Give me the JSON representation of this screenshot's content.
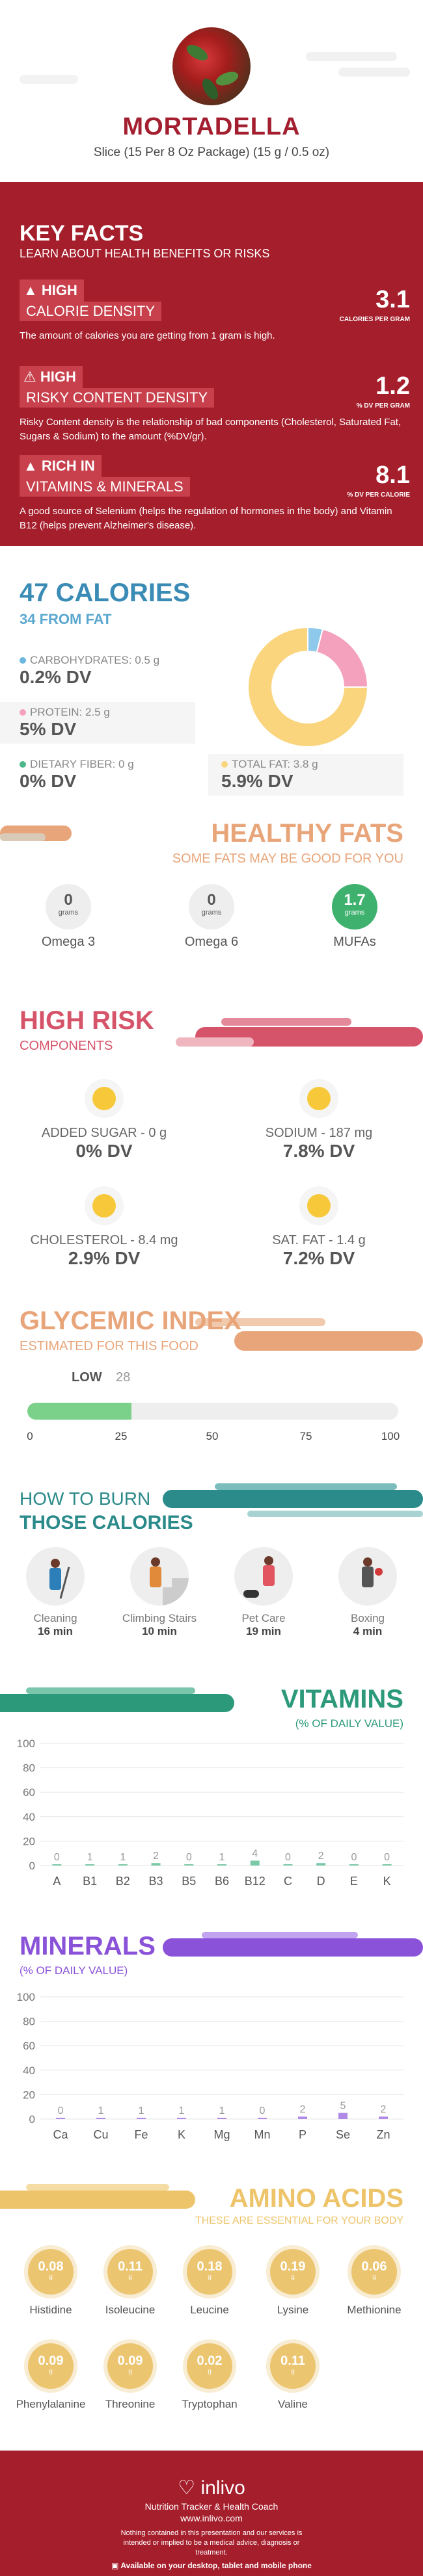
{
  "header": {
    "title": "MORTADELLA",
    "subtitle": "Slice (15 Per 8 Oz Package) (15 g / 0.5 oz)"
  },
  "key_facts": {
    "title": "KEY FACTS",
    "subtitle": "LEARN ABOUT HEALTH BENEFITS OR RISKS",
    "items": [
      {
        "icon": "fire-icon",
        "level": "HIGH",
        "name": "CALORIE DENSITY",
        "value": "3.1",
        "unit": "CALORIES PER GRAM",
        "desc": "The amount of calories you are getting from 1 gram is high."
      },
      {
        "icon": "warning-icon",
        "level": "HIGH",
        "name": "RISKY CONTENT DENSITY",
        "value": "1.2",
        "unit": "% DV PER GRAM",
        "desc": "Risky Content density is the relationship of bad components (Cholesterol, Saturated Fat, Sugars & Sodium) to the amount (%DV/gr)."
      },
      {
        "icon": "fire-icon",
        "level": "RICH  IN",
        "name": "VITAMINS & MINERALS",
        "value": "8.1",
        "unit": "% DV PER CALORIE",
        "desc": "A good source of Selenium (helps the regulation of hormones in the body) and Vitamin B12 (helps prevent Alzheimer's disease)."
      }
    ]
  },
  "calories": {
    "title": "47 CALORIES",
    "from_fat": "34 FROM FAT",
    "nutrients": [
      {
        "label": "CARBOHYDRATES: 0.5 g",
        "dv": "0.2% DV",
        "color": "#6bb7e0"
      },
      {
        "label": "PROTEIN: 2.5 g",
        "dv": "5% DV",
        "color": "#f3a1bd"
      },
      {
        "label": "DIETARY FIBER: 0 g",
        "dv": "0% DV",
        "color": "#4cb88a"
      },
      {
        "label": "TOTAL FAT: 3.8 g",
        "dv": "5.9% DV",
        "color": "#fad57e"
      }
    ],
    "chart_data": {
      "type": "pie",
      "categories": [
        "CARBOHYDRATES",
        "PROTEIN",
        "TOTAL FAT"
      ],
      "values": [
        4,
        21,
        75
      ],
      "colors": [
        "#8ec8ea",
        "#f3a1bd",
        "#fad57e"
      ]
    }
  },
  "fats": {
    "title": "HEALTHY FATS",
    "subtitle": "SOME FATS MAY BE GOOD FOR YOU",
    "unit": "grams",
    "items": [
      {
        "value": "0",
        "label": "Omega 3"
      },
      {
        "value": "0",
        "label": "Omega 6"
      },
      {
        "value": "1.7",
        "label": "MUFAs"
      }
    ]
  },
  "risk": {
    "title": "HIGH RISK",
    "subtitle": "COMPONENTS",
    "items": [
      {
        "label": "ADDED SUGAR - 0 g",
        "dv": "0% DV"
      },
      {
        "label": "SODIUM - 187 mg",
        "dv": "7.8% DV"
      },
      {
        "label": "CHOLESTEROL - 8.4 mg",
        "dv": "2.9% DV"
      },
      {
        "label": "SAT. FAT - 1.4 g",
        "dv": "7.2% DV"
      }
    ]
  },
  "glycemic": {
    "title": "GLYCEMIC INDEX",
    "subtitle": "ESTIMATED FOR THIS FOOD",
    "level": "LOW",
    "value": "28",
    "percent": 28,
    "ticks": [
      "0",
      "25",
      "50",
      "75",
      "100"
    ]
  },
  "burn": {
    "title_line1": "HOW TO BURN",
    "title_line2": "THOSE CALORIES",
    "activities": [
      {
        "label": "Cleaning",
        "time": "16 min"
      },
      {
        "label": "Climbing Stairs",
        "time": "10 min"
      },
      {
        "label": "Pet Care",
        "time": "19 min"
      },
      {
        "label": "Boxing",
        "time": "4 min"
      }
    ]
  },
  "vitamins": {
    "title": "VITAMINS",
    "subtitle": "(% OF DAILY VALUE)",
    "chart_data": {
      "type": "bar",
      "categories": [
        "A",
        "B1",
        "B2",
        "B3",
        "B5",
        "B6",
        "B12",
        "C",
        "D",
        "E",
        "K"
      ],
      "values": [
        0,
        1,
        1,
        2,
        0,
        1,
        4,
        0,
        2,
        0,
        0
      ],
      "ylim": [
        0,
        100
      ],
      "yticks": [
        "100",
        "80",
        "60",
        "40",
        "20",
        "0"
      ],
      "color": "#79c9a6"
    }
  },
  "minerals": {
    "title": "MINERALS",
    "subtitle": "(% OF DAILY VALUE)",
    "chart_data": {
      "type": "bar",
      "categories": [
        "Ca",
        "Cu",
        "Fe",
        "K",
        "Mg",
        "Mn",
        "P",
        "Se",
        "Zn"
      ],
      "values": [
        0,
        1,
        1,
        1,
        1,
        0,
        2,
        5,
        2
      ],
      "ylim": [
        0,
        100
      ],
      "yticks": [
        "100",
        "80",
        "60",
        "40",
        "20",
        "0"
      ],
      "color": "#b08ae6"
    }
  },
  "amino": {
    "title": "AMINO ACIDS",
    "subtitle": "THESE ARE ESSENTIAL FOR YOUR BODY",
    "unit": "g",
    "items": [
      {
        "value": "0.08",
        "label": "Histidine"
      },
      {
        "value": "0.11",
        "label": "Isoleucine"
      },
      {
        "value": "0.18",
        "label": "Leucine"
      },
      {
        "value": "0.19",
        "label": "Lysine"
      },
      {
        "value": "0.06",
        "label": "Methionine"
      },
      {
        "value": "0.09",
        "label": "Phenylalanine"
      },
      {
        "value": "0.09",
        "label": "Threonine"
      },
      {
        "value": "0.02",
        "label": "Tryptophan"
      },
      {
        "value": "0.11",
        "label": "Valine"
      }
    ]
  },
  "footer": {
    "brand": "inlivo",
    "tagline": "Nutrition Tracker & Health Coach",
    "url": "www.inlivo.com",
    "disclaimer": "Nothing contained in this presentation and our services is intended or implied to be a medical advice, diagnosis or treatment.",
    "available": "Available on your desktop, tablet and mobile phone"
  }
}
